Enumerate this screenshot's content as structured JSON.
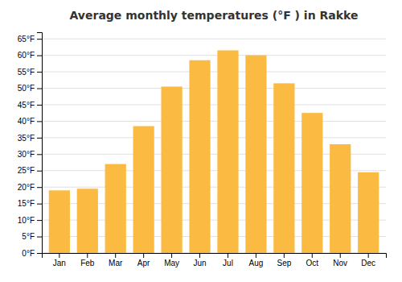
{
  "chart_data": {
    "type": "bar",
    "title": "Average monthly temperatures (°F ) in Rakke",
    "categories": [
      "Jan",
      "Feb",
      "Mar",
      "Apr",
      "May",
      "Jun",
      "Jul",
      "Aug",
      "Sep",
      "Oct",
      "Nov",
      "Dec"
    ],
    "values": [
      19,
      19.5,
      27,
      38.5,
      50.5,
      58.5,
      61.5,
      60,
      51.5,
      42.5,
      33,
      24.5
    ],
    "color": "#FBBA42",
    "ylim": [
      0,
      67
    ],
    "yticks": [
      {
        "value": 0,
        "label": "0°F"
      },
      {
        "value": 5,
        "label": "5°F"
      },
      {
        "value": 10,
        "label": "10°F"
      },
      {
        "value": 15,
        "label": "15°F"
      },
      {
        "value": 20,
        "label": "20°F"
      },
      {
        "value": 25,
        "label": "25°F"
      },
      {
        "value": 30,
        "label": "30°F"
      },
      {
        "value": 35,
        "label": "35°F"
      },
      {
        "value": 40,
        "label": "40°F"
      },
      {
        "value": 45,
        "label": "45°F"
      },
      {
        "value": 50,
        "label": "50°F"
      },
      {
        "value": 55,
        "label": "55°F"
      },
      {
        "value": 60,
        "label": "60°F"
      },
      {
        "value": 65,
        "label": "65°F"
      }
    ],
    "grid": true
  }
}
